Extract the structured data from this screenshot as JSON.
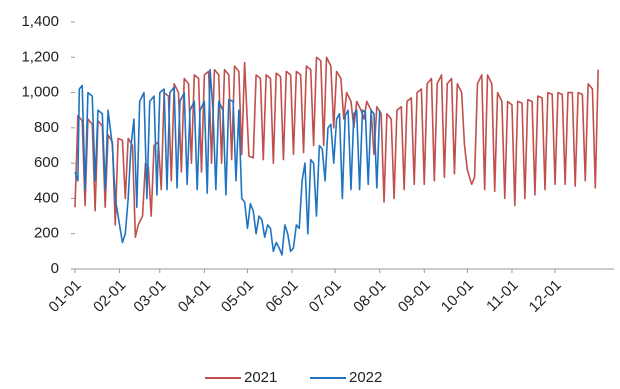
{
  "chart_data": {
    "type": "line",
    "xlim": [
      0,
      375
    ],
    "xticks": [
      {
        "value": 0,
        "label": "01-01"
      },
      {
        "value": 31,
        "label": "02-01"
      },
      {
        "value": 59,
        "label": "03-01"
      },
      {
        "value": 90,
        "label": "04-01"
      },
      {
        "value": 120,
        "label": "05-01"
      },
      {
        "value": 151,
        "label": "06-01"
      },
      {
        "value": 181,
        "label": "07-01"
      },
      {
        "value": 212,
        "label": "08-01"
      },
      {
        "value": 243,
        "label": "09-01"
      },
      {
        "value": 273,
        "label": "10-01"
      },
      {
        "value": 304,
        "label": "11-01"
      },
      {
        "value": 334,
        "label": "12-01"
      }
    ],
    "ylim": [
      0,
      1400
    ],
    "yticks": [
      0,
      200,
      400,
      600,
      800,
      {
        "value": 1000,
        "label": "1,000"
      },
      {
        "value": 1200,
        "label": "1,200"
      },
      {
        "value": 1400,
        "label": "1,400"
      }
    ],
    "grid": false,
    "legend": "bottom",
    "series": [
      {
        "name": "2021",
        "color": "#c0504d",
        "x": [
          0,
          2,
          5,
          7,
          9,
          12,
          14,
          16,
          19,
          21,
          23,
          26,
          28,
          30,
          33,
          35,
          37,
          40,
          42,
          44,
          47,
          49,
          51,
          53,
          55,
          58,
          60,
          62,
          65,
          67,
          69,
          72,
          74,
          76,
          79,
          81,
          83,
          86,
          88,
          90,
          93,
          95,
          97,
          100,
          102,
          104,
          107,
          109,
          111,
          114,
          116,
          118,
          121,
          124,
          126,
          129,
          131,
          133,
          136,
          138,
          140,
          143,
          145,
          147,
          150,
          152,
          154,
          157,
          159,
          161,
          164,
          166,
          168,
          171,
          173,
          175,
          178,
          180,
          182,
          185,
          187,
          189,
          192,
          194,
          196,
          199,
          201,
          203,
          206,
          208,
          210,
          213,
          215,
          217,
          220,
          222,
          224,
          227,
          229,
          231,
          234,
          236,
          238,
          241,
          243,
          245,
          248,
          250,
          252,
          255,
          257,
          259,
          262,
          264,
          266,
          269,
          271,
          273,
          276,
          278,
          280,
          283,
          285,
          287,
          290,
          292,
          294,
          297,
          299,
          301,
          304,
          306,
          308,
          311,
          313,
          315,
          318,
          320,
          322,
          325,
          327,
          329,
          332,
          334,
          336,
          339,
          341,
          343,
          346,
          348,
          350,
          353,
          355,
          357,
          360,
          362,
          364
        ],
        "values": [
          350,
          870,
          840,
          360,
          850,
          820,
          330,
          840,
          810,
          350,
          760,
          720,
          250,
          740,
          730,
          400,
          740,
          700,
          180,
          250,
          300,
          600,
          580,
          300,
          700,
          720,
          450,
          1000,
          980,
          500,
          1050,
          1000,
          550,
          1080,
          1050,
          600,
          1100,
          1080,
          550,
          1100,
          1120,
          600,
          1130,
          1100,
          600,
          1130,
          1100,
          620,
          1150,
          1120,
          650,
          1170,
          640,
          630,
          1100,
          1080,
          620,
          1100,
          1080,
          600,
          1110,
          1090,
          620,
          1120,
          1100,
          650,
          1120,
          1100,
          660,
          1150,
          1130,
          700,
          1200,
          1180,
          700,
          1200,
          1150,
          800,
          1120,
          1080,
          850,
          1000,
          950,
          800,
          950,
          900,
          850,
          950,
          900,
          650,
          920,
          880,
          380,
          880,
          850,
          400,
          900,
          920,
          450,
          950,
          970,
          480,
          1000,
          1020,
          480,
          1050,
          1080,
          500,
          1050,
          1100,
          520,
          1050,
          1080,
          540,
          1050,
          1000,
          700,
          560,
          480,
          520,
          1050,
          1100,
          450,
          1100,
          1050,
          440,
          1000,
          950,
          400,
          950,
          930,
          360,
          950,
          940,
          400,
          960,
          950,
          420,
          980,
          970,
          450,
          1000,
          990,
          480,
          1000,
          990,
          480,
          1000,
          1000,
          470,
          1000,
          990,
          500,
          1050,
          1020,
          460,
          1130
        ]
      },
      {
        "name": "2022",
        "color": "#1f74c2",
        "x": [
          0,
          2,
          3,
          5,
          7,
          9,
          12,
          14,
          16,
          19,
          21,
          23,
          26,
          28,
          30,
          33,
          35,
          37,
          39,
          41,
          43,
          45,
          48,
          50,
          52,
          55,
          57,
          59,
          62,
          64,
          66,
          69,
          71,
          73,
          76,
          78,
          80,
          83,
          85,
          87,
          90,
          92,
          94,
          96,
          98,
          100,
          103,
          105,
          107,
          110,
          112,
          114,
          116,
          118,
          120,
          122,
          124,
          126,
          128,
          130,
          132,
          134,
          136,
          138,
          140,
          142,
          144,
          146,
          148,
          150,
          152,
          154,
          156,
          158,
          160,
          162,
          164,
          166,
          168,
          170,
          172,
          174,
          176,
          178,
          180,
          182,
          184,
          186,
          188,
          190,
          192,
          194,
          196,
          198,
          200,
          202,
          204,
          206,
          208,
          210,
          212
        ],
        "values": [
          550,
          500,
          1020,
          1040,
          450,
          1000,
          980,
          500,
          900,
          880,
          450,
          900,
          700,
          400,
          300,
          150,
          200,
          400,
          700,
          850,
          350,
          950,
          1000,
          400,
          950,
          980,
          420,
          1000,
          1020,
          450,
          1000,
          1030,
          460,
          950,
          1000,
          480,
          900,
          950,
          450,
          900,
          950,
          430,
          1130,
          900,
          450,
          950,
          900,
          420,
          960,
          950,
          500,
          900,
          400,
          380,
          230,
          370,
          330,
          200,
          300,
          280,
          180,
          250,
          230,
          100,
          150,
          120,
          80,
          250,
          200,
          100,
          120,
          250,
          230,
          500,
          600,
          200,
          620,
          600,
          300,
          700,
          680,
          500,
          800,
          820,
          600,
          850,
          880,
          400,
          870,
          900,
          450,
          880,
          900,
          450,
          900,
          890,
          480,
          900,
          880,
          460,
          900
        ]
      }
    ]
  }
}
